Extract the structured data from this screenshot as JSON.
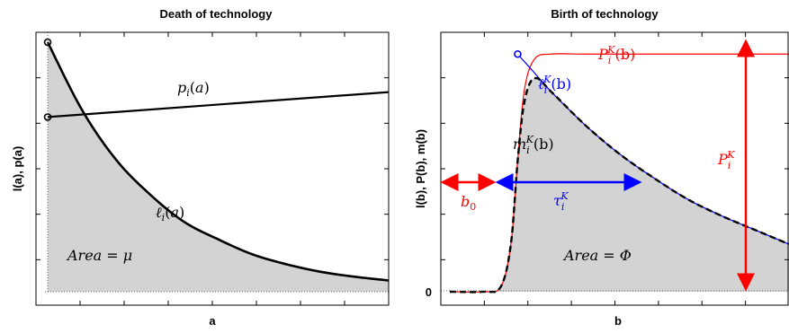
{
  "chart_data": [
    {
      "type": "line",
      "title": "Death of technology",
      "xlabel": "a",
      "ylabel": "l(a), p(a)",
      "xlim": [
        0,
        10
      ],
      "ylim": [
        0,
        1
      ],
      "grid": false,
      "series": [
        {
          "name": "p_i(a)",
          "x": [
            0,
            10
          ],
          "y": [
            0.7,
            0.8
          ]
        },
        {
          "name": "ℓ_i(a)",
          "x": [
            0,
            1,
            2,
            3,
            4,
            5,
            6,
            7,
            8,
            9,
            10
          ],
          "y": [
            1.0,
            0.73,
            0.53,
            0.39,
            0.28,
            0.21,
            0.15,
            0.11,
            0.08,
            0.06,
            0.045
          ],
          "fill": true
        }
      ],
      "annotations": [
        {
          "text": "Area = μ"
        }
      ],
      "colors": {
        "fill": "#d3d3d3",
        "line": "#000000"
      }
    },
    {
      "type": "line",
      "title": "Birth of technology",
      "xlabel": "b",
      "ylabel": "l(b), P(b), m(b)",
      "xlim": [
        0,
        10
      ],
      "ylim": [
        0,
        1.05
      ],
      "ytick_labels": [
        "0"
      ],
      "grid": false,
      "series": [
        {
          "name": "P_i^K(b)",
          "x": [
            0,
            1,
            1.5,
            1.8,
            2.0,
            2.2,
            2.5,
            3,
            4,
            6,
            8,
            10
          ],
          "y": [
            0,
            0,
            0.02,
            0.2,
            0.55,
            0.85,
            0.98,
            1.0,
            1.0,
            1.0,
            1.0,
            1.0
          ]
        },
        {
          "name": "ℓ_i^K(b)",
          "x": [
            2.0,
            2.5,
            3,
            4,
            5,
            6,
            7,
            8,
            9,
            10
          ],
          "y": [
            1.0,
            0.92,
            0.84,
            0.7,
            0.58,
            0.48,
            0.39,
            0.32,
            0.26,
            0.2
          ]
        },
        {
          "name": "m_i^K(b)",
          "x": [
            0,
            1,
            1.5,
            1.8,
            2.0,
            2.2,
            2.5,
            3,
            4,
            5,
            6,
            7,
            8,
            9,
            10
          ],
          "y": [
            0,
            0,
            0.02,
            0.2,
            0.55,
            0.8,
            0.9,
            0.84,
            0.7,
            0.58,
            0.48,
            0.39,
            0.32,
            0.26,
            0.2
          ],
          "fill": true,
          "dashed": true
        }
      ],
      "annotations": [
        {
          "text": "b_0"
        },
        {
          "text": "τ_i^K"
        },
        {
          "text": "P_i^K"
        },
        {
          "text": "Area = Φ"
        }
      ],
      "colors": {
        "red": "#ff0000",
        "blue": "#0000ff",
        "fill": "#d3d3d3"
      }
    }
  ]
}
